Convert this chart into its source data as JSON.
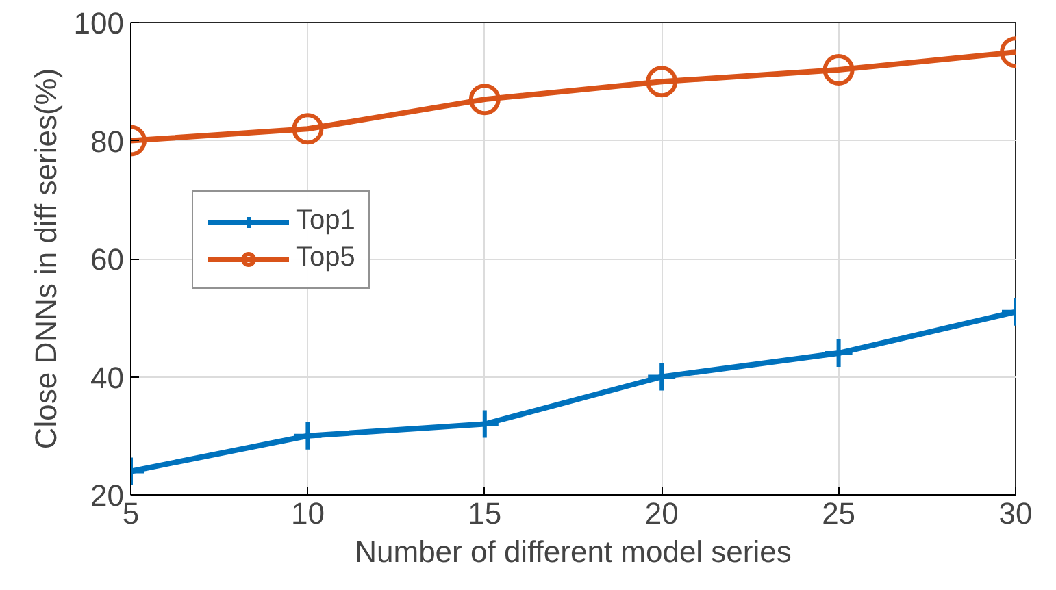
{
  "chart_data": {
    "type": "line",
    "xlabel": "Number of different model series",
    "ylabel": "Close DNNs in diff series(%)",
    "x": [
      5,
      10,
      15,
      20,
      25,
      30
    ],
    "series": [
      {
        "name": "Top1",
        "color": "#0072bd",
        "marker": "cross",
        "values": [
          24,
          30,
          32,
          40,
          44,
          51
        ]
      },
      {
        "name": "Top5",
        "color": "#d95319",
        "marker": "circle",
        "values": [
          80,
          82,
          87,
          90,
          92,
          95
        ]
      }
    ],
    "xlim": [
      5,
      30
    ],
    "ylim": [
      20,
      100
    ],
    "xticks": [
      5,
      10,
      15,
      20,
      25,
      30
    ],
    "yticks": [
      20,
      40,
      60,
      80,
      100
    ],
    "grid": true,
    "legend": "left",
    "line_style": "solid"
  }
}
